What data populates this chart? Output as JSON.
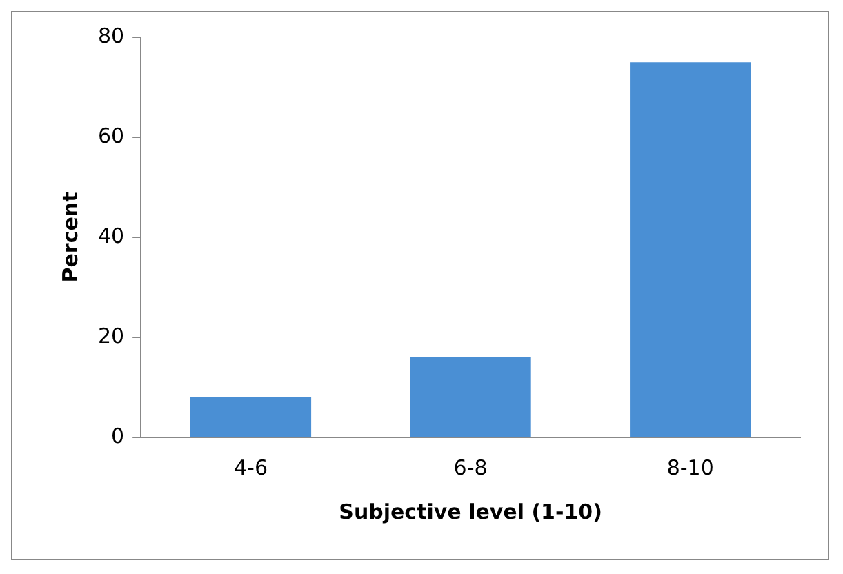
{
  "chart_data": {
    "type": "bar",
    "xlabel": "Subjective level (1-10)",
    "ylabel": "Percent",
    "categories": [
      "4-6",
      "6-8",
      "8-10"
    ],
    "values": [
      8,
      16,
      75
    ],
    "color": "#4a8fd4",
    "ylim": [
      0,
      80
    ],
    "yticks": [
      0,
      20,
      40,
      60,
      80
    ],
    "grid": false,
    "legend": false
  }
}
